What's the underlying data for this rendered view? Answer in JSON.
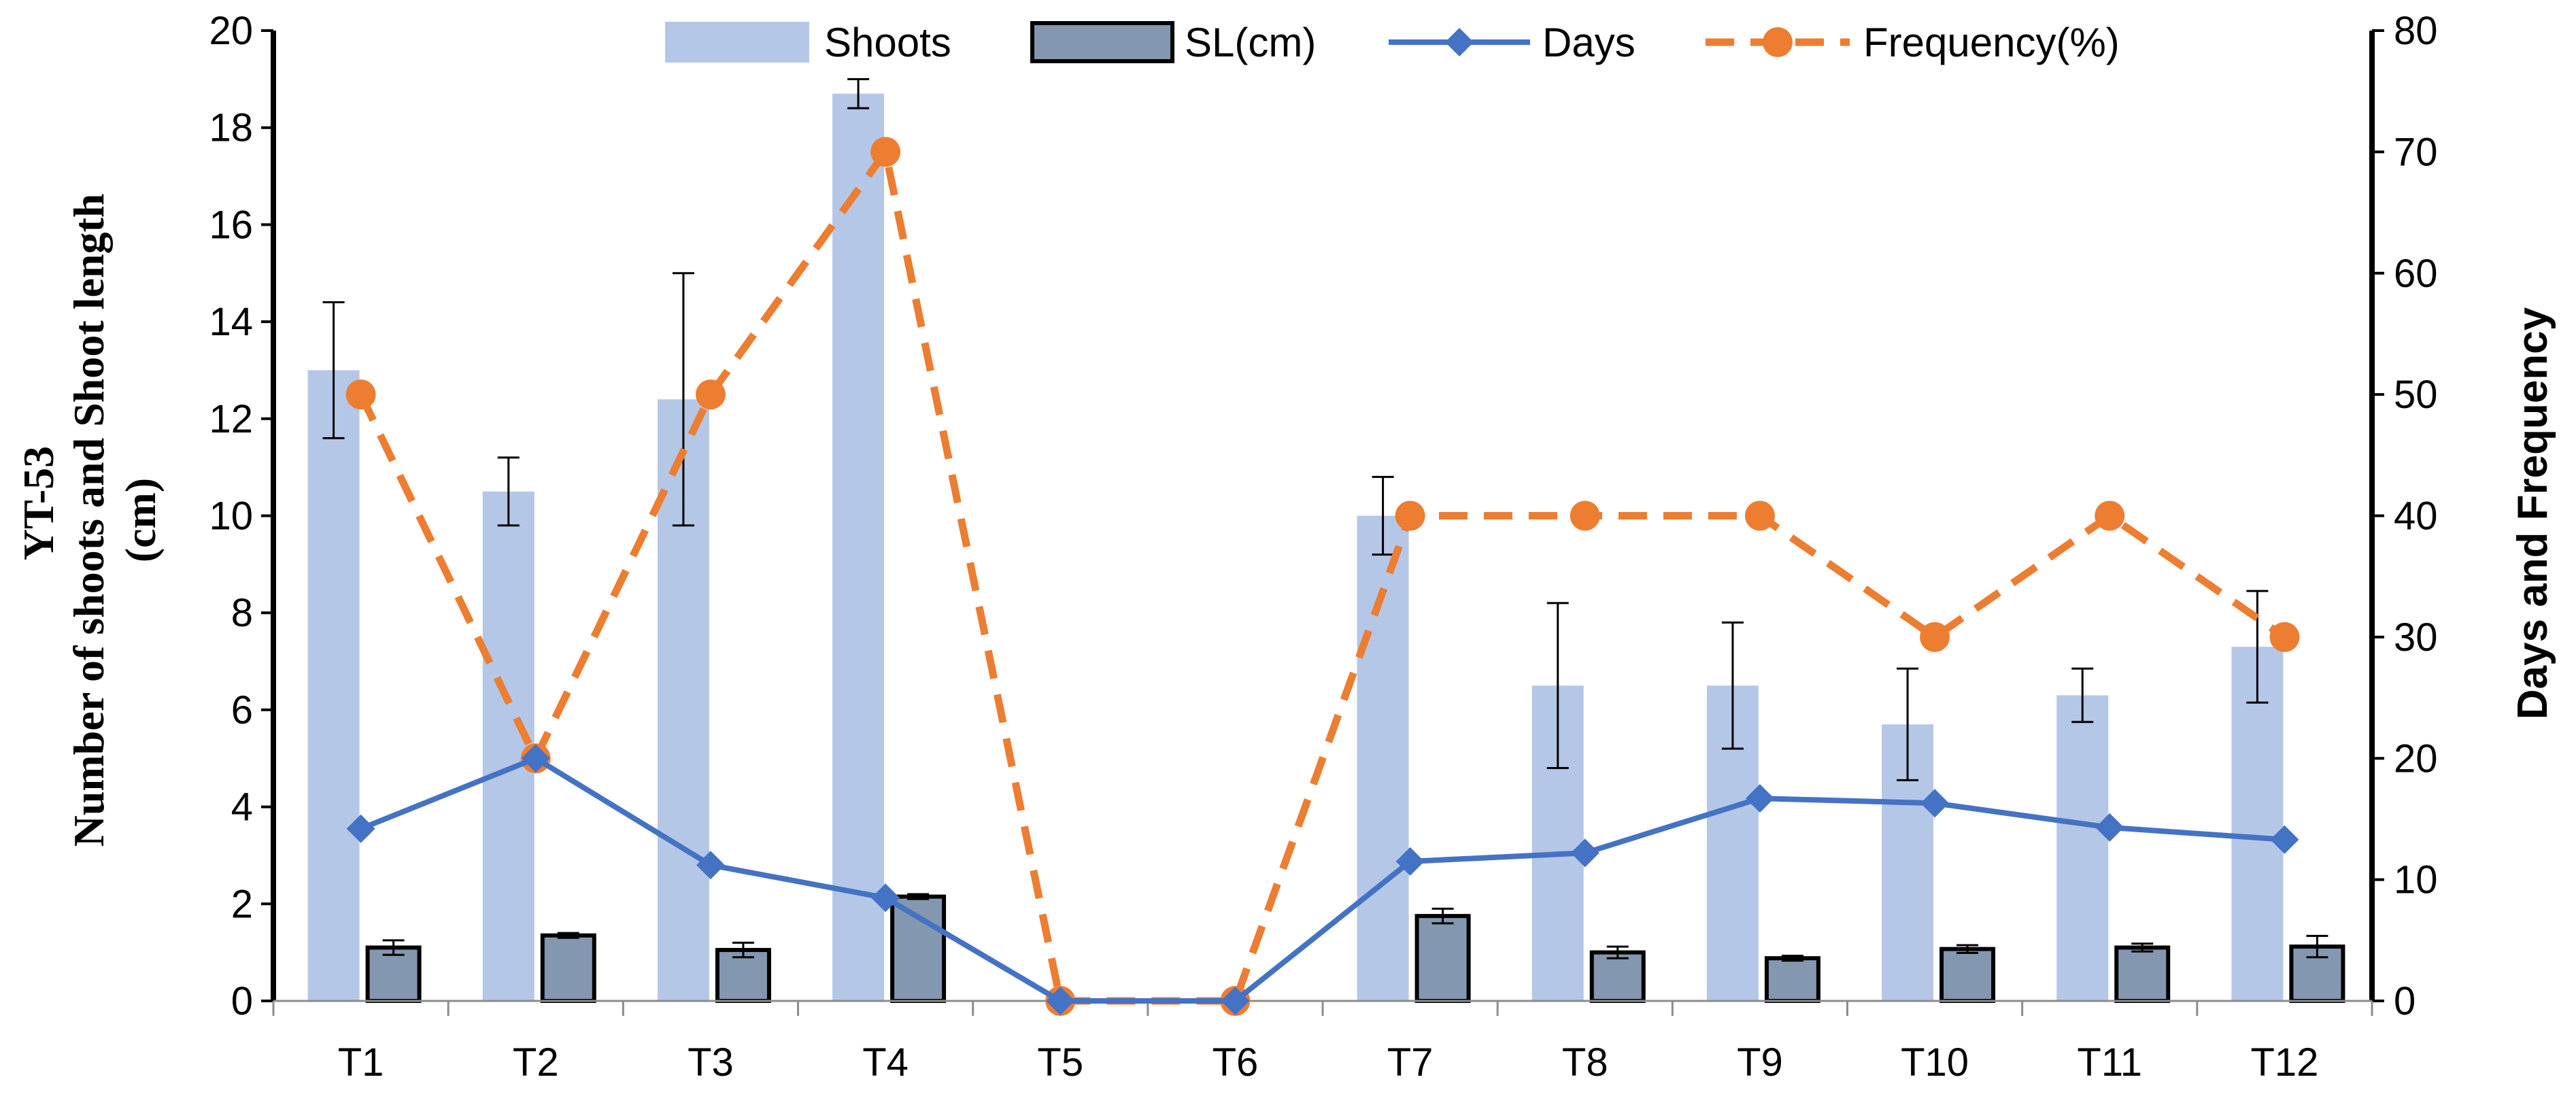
{
  "chart_data": {
    "type": "bar",
    "title": "",
    "categories": [
      "T1",
      "T2",
      "T3",
      "T4",
      "T5",
      "T6",
      "T7",
      "T8",
      "T9",
      "T10",
      "T11",
      "T12"
    ],
    "y_left": {
      "label_line1": "YT-53",
      "label_line2": "Number of shoots and Shoot length",
      "label_line3": "(cm)",
      "range": [
        0,
        20
      ],
      "ticks": [
        0,
        2,
        4,
        6,
        8,
        10,
        12,
        14,
        16,
        18,
        20
      ]
    },
    "y_right": {
      "label": "Days and Frequency",
      "range": [
        0,
        80
      ],
      "ticks": [
        0,
        10,
        20,
        30,
        40,
        50,
        60,
        70,
        80
      ]
    },
    "legend_position": "top",
    "series": [
      {
        "name": "Shoots",
        "kind": "bar",
        "axis": "left",
        "color": "#b4c7e7",
        "values": [
          13.0,
          10.5,
          12.4,
          18.7,
          0,
          0,
          10.0,
          6.5,
          6.5,
          5.7,
          6.3,
          7.3
        ],
        "errors": [
          1.4,
          0.7,
          2.6,
          0.3,
          0,
          0,
          0.8,
          1.7,
          1.3,
          1.15,
          0.55,
          1.15
        ]
      },
      {
        "name": "SL(cm)",
        "kind": "bar",
        "axis": "left",
        "color": "#8497b0",
        "values": [
          1.1,
          1.35,
          1.05,
          2.15,
          0,
          0,
          1.75,
          1.0,
          0.88,
          1.07,
          1.1,
          1.12
        ],
        "errors": [
          0.15,
          0.05,
          0.15,
          0.05,
          0,
          0,
          0.15,
          0.12,
          0.05,
          0.08,
          0.08,
          0.22
        ]
      },
      {
        "name": "Days",
        "kind": "line",
        "axis": "right",
        "color": "#4472c4",
        "values": [
          14.2,
          20.0,
          11.2,
          8.5,
          0,
          0,
          11.5,
          12.2,
          16.7,
          16.3,
          14.3,
          13.3
        ]
      },
      {
        "name": "Frequency(%)",
        "kind": "line",
        "axis": "right",
        "color": "#ed7d31",
        "values": [
          50,
          20,
          50,
          70,
          0,
          0,
          40,
          40,
          40,
          30,
          40,
          30
        ]
      }
    ]
  }
}
